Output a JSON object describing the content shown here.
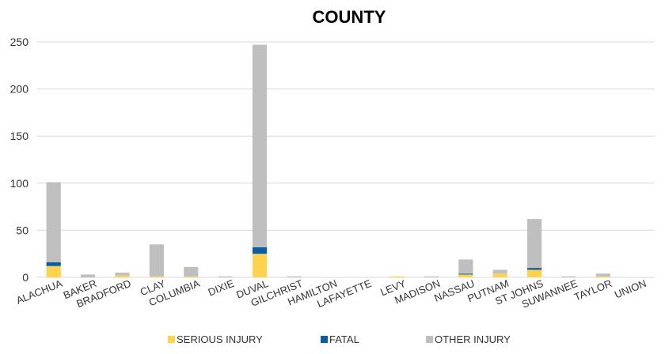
{
  "chart_data": {
    "type": "bar",
    "stacked": true,
    "title": "COUNTY",
    "categories": [
      "ALACHUA",
      "BAKER",
      "BRADFORD",
      "CLAY",
      "COLUMBIA",
      "DIXIE",
      "DUVAL",
      "GILCHRIST",
      "HAMILTON",
      "LAFAYETTE",
      "LEVY",
      "MADISON",
      "NASSAU",
      "PUTNAM",
      "ST JOHNS",
      "SUWANNEE",
      "TAYLOR",
      "UNION"
    ],
    "series": [
      {
        "name": "SERIOUS INJURY",
        "color": "#FFD34D",
        "values": [
          12,
          0,
          2,
          1,
          1,
          0,
          25,
          0,
          0,
          0,
          1,
          0,
          3,
          4,
          8,
          0,
          1,
          0
        ]
      },
      {
        "name": "FATAL",
        "color": "#0B5DA6",
        "values": [
          4,
          0,
          0,
          0,
          0,
          0,
          7,
          0,
          0,
          0,
          0,
          0,
          1,
          0,
          2,
          0,
          0,
          0
        ]
      },
      {
        "name": "OTHER INJURY",
        "color": "#BFBFBF",
        "values": [
          85,
          3,
          3,
          34,
          10,
          1,
          215,
          1,
          0,
          0,
          0,
          1,
          15,
          4,
          52,
          1,
          3,
          0
        ]
      }
    ],
    "ylim": [
      0,
      250
    ],
    "yticks": [
      0,
      50,
      100,
      150,
      200,
      250
    ],
    "grid": true,
    "legend": "bottom"
  }
}
